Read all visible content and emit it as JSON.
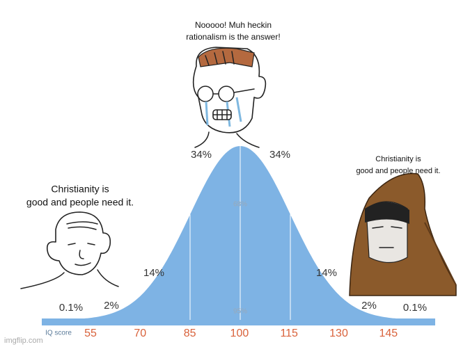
{
  "captions": {
    "top": [
      "Nooooo! Muh heckin",
      "rationalism is the answer!"
    ],
    "right": [
      "Christianity is",
      "good and people need it."
    ],
    "left": [
      "Christianity is",
      "good and people need it."
    ]
  },
  "curve": {
    "percent_labels": [
      "0.1%",
      "2%",
      "14%",
      "34%",
      "34%",
      "14%",
      "2%",
      "0.1%"
    ],
    "inner_labels": [
      "68%",
      "95%"
    ],
    "axis_label": "IQ score",
    "ticks": [
      "55",
      "70",
      "85",
      "100",
      "115",
      "130",
      "145"
    ]
  },
  "watermark": "imgflip.com"
}
